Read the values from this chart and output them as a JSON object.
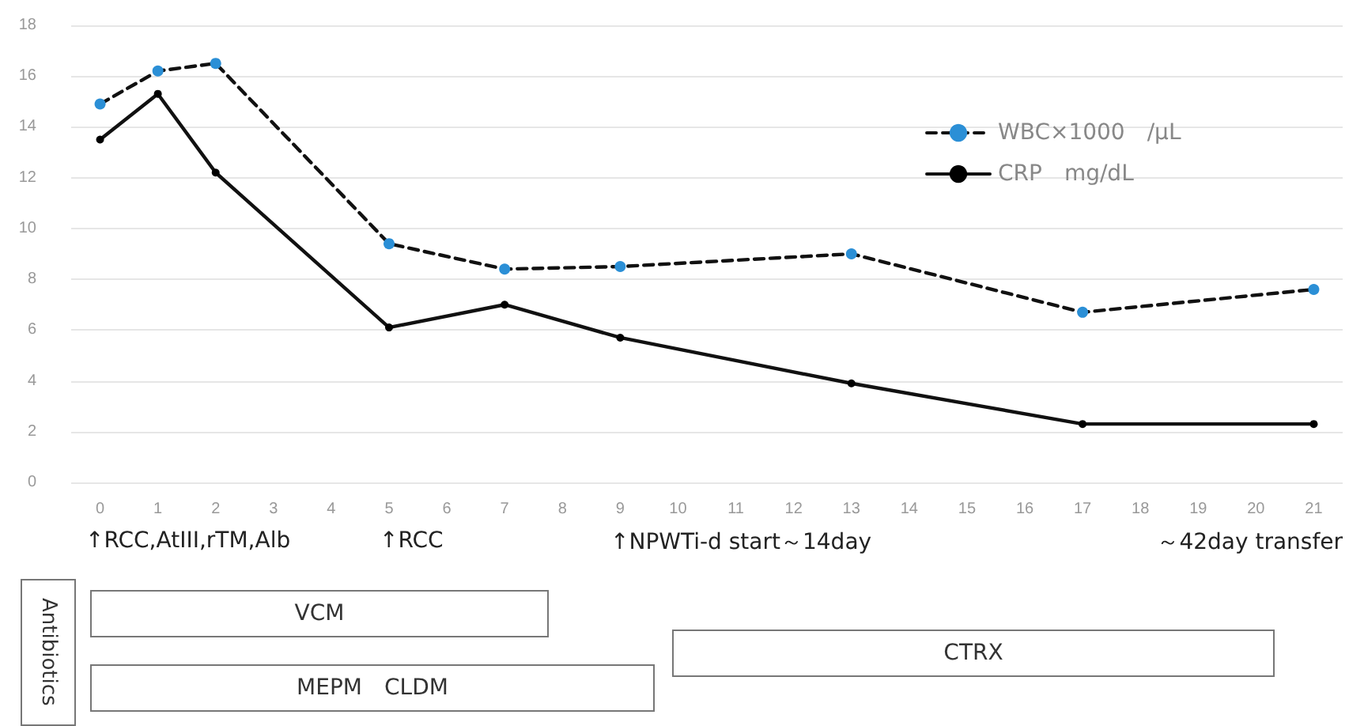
{
  "chart_data": {
    "type": "line",
    "x": [
      0,
      1,
      2,
      5,
      7,
      9,
      13,
      17,
      21
    ],
    "series": [
      {
        "name": "WBC×1000　/μL",
        "color": "#2b8fd6",
        "line_style": "dashed",
        "values": [
          14.9,
          16.2,
          16.5,
          9.4,
          8.4,
          8.5,
          9.0,
          6.7,
          7.6
        ]
      },
      {
        "name": "CRP　mg/dL",
        "color": "#000000",
        "line_style": "solid",
        "values": [
          13.5,
          15.3,
          12.2,
          6.1,
          7.0,
          5.7,
          3.9,
          2.3,
          2.3
        ]
      }
    ],
    "xlim": [
      -0.5,
      21.5
    ],
    "xticks": [
      0,
      1,
      2,
      3,
      4,
      5,
      6,
      7,
      8,
      9,
      10,
      11,
      12,
      13,
      14,
      15,
      16,
      17,
      18,
      19,
      20,
      21
    ],
    "ylim": [
      0,
      18
    ],
    "yticks": [
      0,
      2,
      4,
      6,
      8,
      10,
      12,
      14,
      16,
      18
    ],
    "grid": "y",
    "legend": "top right",
    "marker": "circle",
    "annotations": [
      "↑RCC,AtIII,rTM,Alb",
      "↑RCC",
      "↑NPWTi-d start～14day",
      "～42day transfer",
      "Antibiotics",
      "VCM",
      "MEPM　CLDM",
      "CTRX"
    ]
  }
}
